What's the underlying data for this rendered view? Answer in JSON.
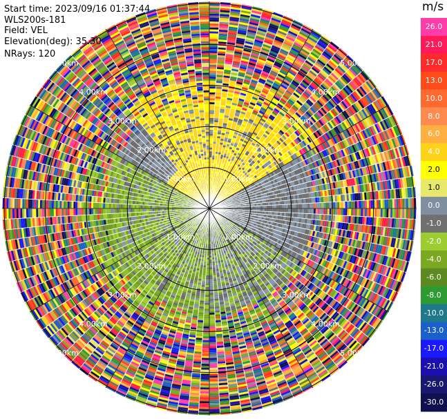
{
  "header": {
    "start_time": "Start time: 2023/09/16 01:37:44",
    "instrument": "WLS200s-181",
    "field": "Field: VEL",
    "elevation": "Elevation(deg): 35.30",
    "nrays": "NRays: 120"
  },
  "colorbar": {
    "unit": "m/s",
    "ticks": [
      "26.0",
      "21.0",
      "17.0",
      "13.0",
      "10.0",
      "8.0",
      "6.0",
      "4.0",
      "2.0",
      "1.0",
      "0.0",
      "-1.0",
      "-2.0",
      "-4.0",
      "-6.0",
      "-8.0",
      "-10.0",
      "-13.0",
      "-17.0",
      "-21.0",
      "-26.0",
      "-30.0"
    ],
    "colors": [
      "#ff3ca8",
      "#ff1b5a",
      "#ff2a2a",
      "#ff4b1a",
      "#ff6a2e",
      "#ff8a50",
      "#ffb040",
      "#ffd21a",
      "#ffff00",
      "#e8e86a",
      "#7f8fa0",
      "#707070",
      "#9ccc30",
      "#7aa820",
      "#5c8a20",
      "#2e9a32",
      "#1e7a8a",
      "#1a60c8",
      "#1a1aff",
      "#1a10b0",
      "#181870",
      "#101050"
    ]
  },
  "chart_data": {
    "type": "heatmap",
    "title": "Start time: 2023/09/16 01:37:44",
    "field": "VEL",
    "unit": "m/s",
    "nrays": 120,
    "elevation_deg": 35.3,
    "range_ring_labels": [
      "1.00km",
      "2.00km",
      "3.00km",
      "4.00km",
      "5.00km"
    ],
    "range_rings_km": [
      1,
      2,
      3,
      4,
      5
    ],
    "max_range_km": 5.05,
    "velocity_min": -30.0,
    "velocity_max": 26.0,
    "sectors": [
      {
        "azimuth_deg": [
          300,
          60
        ],
        "range_km": [
          0.0,
          1.2
        ],
        "dominant_velocity": 1.5
      },
      {
        "azimuth_deg": [
          0,
          60
        ],
        "range_km": [
          1.0,
          2.5
        ],
        "dominant_velocity": 2.0
      },
      {
        "azimuth_deg": [
          60,
          300
        ],
        "range_km": [
          0.0,
          2.5
        ],
        "dominant_velocity": 0.0
      },
      {
        "azimuth_deg": [
          180,
          300
        ],
        "range_km": [
          0.0,
          2.8
        ],
        "dominant_velocity": -2.0
      }
    ]
  }
}
